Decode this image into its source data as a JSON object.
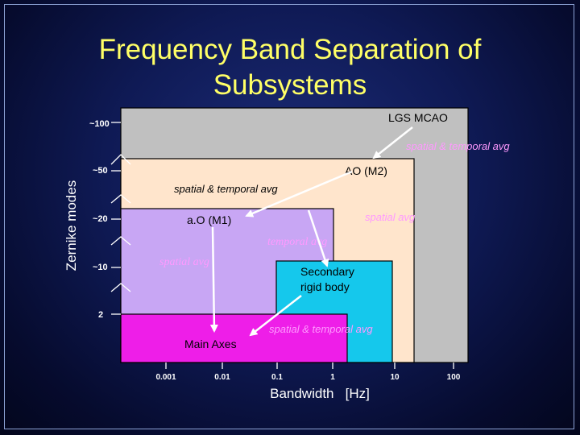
{
  "title_line1": "Frequency Band Separation of",
  "title_line2": "Subsystems",
  "y_axis": {
    "label": "Zernike modes",
    "ticks": [
      "~100",
      "~50",
      "~20",
      "~10",
      "2"
    ]
  },
  "x_axis": {
    "label": "Bandwidth   [Hz]",
    "ticks": [
      "0.001",
      "0.01",
      "0.1",
      "1",
      "10",
      "100"
    ]
  },
  "bands": {
    "lgs_mcao": "LGS MCAO",
    "ao_m2": "AO (M2)",
    "ao_m1": "a.O (M1)",
    "secondary_line1": "Secondary",
    "secondary_line2": "rigid body",
    "main_axes": "Main Axes"
  },
  "annotations": {
    "spatial_temporal_1": "spatial & temporal avg",
    "spatial_temporal_2": "spatial & temporal avg",
    "spatial_avg_1": "spatial avg",
    "temporal_avg": "temporal avg",
    "spatial_avg_2": "spatial avg",
    "spatial_temporal_3": "spatial & temporal avg"
  },
  "colors": {
    "lgs_mcao": "#c0c0c0",
    "ao_m2": "#ffe5cc",
    "ao_m1": "#c8a6f4",
    "secondary": "#15c8ec",
    "main_axes": "#ee1ee8",
    "title": "#ffff66",
    "annotation": "#ff99ff"
  }
}
